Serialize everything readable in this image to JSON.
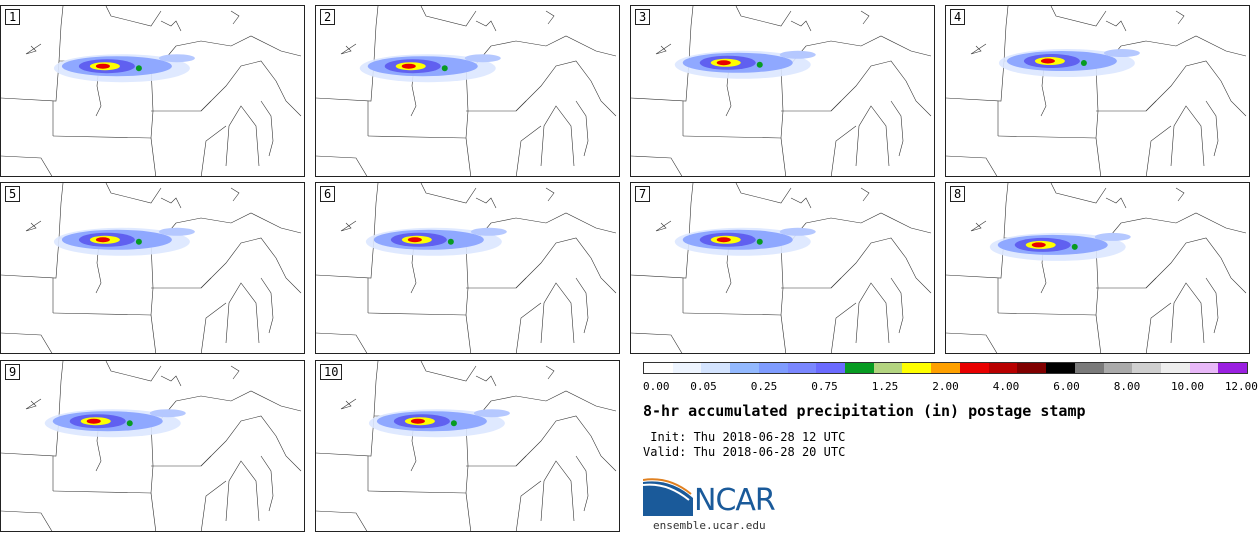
{
  "panels": [
    {
      "label": "1",
      "blob": [
        0.38,
        0.35
      ]
    },
    {
      "label": "2",
      "blob": [
        0.35,
        0.35
      ]
    },
    {
      "label": "3",
      "blob": [
        0.35,
        0.33
      ]
    },
    {
      "label": "4",
      "blob": [
        0.38,
        0.32
      ]
    },
    {
      "label": "5",
      "blob": [
        0.38,
        0.33
      ]
    },
    {
      "label": "6",
      "blob": [
        0.37,
        0.33
      ]
    },
    {
      "label": "7",
      "blob": [
        0.35,
        0.33
      ]
    },
    {
      "label": "8",
      "blob": [
        0.35,
        0.36
      ]
    },
    {
      "label": "9",
      "blob": [
        0.35,
        0.35
      ]
    },
    {
      "label": "10",
      "blob": [
        0.38,
        0.35
      ]
    }
  ],
  "colorbar": {
    "colors": [
      "#ffffff",
      "#eef5ff",
      "#d4e4ff",
      "#93b9ff",
      "#7f9cff",
      "#7a87ff",
      "#6b6bff",
      "#079b22",
      "#b3d480",
      "#ffff00",
      "#ffa000",
      "#e80000",
      "#b80000",
      "#800000",
      "#000000",
      "#7a7a7a",
      "#aaaaaa",
      "#cfcfcf",
      "#eeeeee",
      "#e8b8f8",
      "#9a20e0"
    ],
    "ticks": [
      "0.00",
      "0.05",
      "0.25",
      "0.75",
      "1.25",
      "2.00",
      "4.00",
      "6.00",
      "8.00",
      "10.00",
      "12.00"
    ]
  },
  "text": {
    "title": "8-hr accumulated precipitation (in) postage stamp",
    "init": " Init: Thu 2018-06-28 12 UTC",
    "valid": "Valid: Thu 2018-06-28 20 UTC",
    "logo": "NCAR",
    "site": "ensemble.ucar.edu"
  },
  "colors": {
    "logo_blue": "#1a5a9a"
  }
}
